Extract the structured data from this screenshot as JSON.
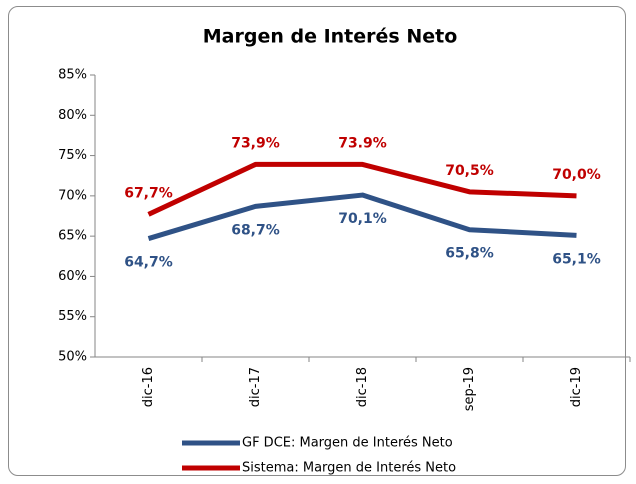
{
  "chart_data": {
    "type": "line",
    "title": "Margen de Interés Neto",
    "categories": [
      "dic-16",
      "dic-17",
      "dic-18",
      "sep-19",
      "dic-19"
    ],
    "series": [
      {
        "name": "GF DCE: Margen de Interés Neto",
        "color": "#2f5286",
        "values": [
          64.7,
          68.7,
          70.1,
          65.8,
          65.1
        ],
        "value_labels": [
          "64,7%",
          "68,7%",
          "70,1%",
          "65,8%",
          "65,1%"
        ]
      },
      {
        "name": "Sistema: Margen de Interés Neto",
        "color": "#c00000",
        "values": [
          67.7,
          73.9,
          73.9,
          70.5,
          70.0
        ],
        "value_labels": [
          "67,7%",
          "73,9%",
          "73.9%",
          "70,5%",
          "70,0%"
        ]
      }
    ],
    "ylim": [
      50,
      85
    ],
    "yticks": [
      {
        "value": 50,
        "label": "50%"
      },
      {
        "value": 55,
        "label": "55%"
      },
      {
        "value": 60,
        "label": "60%"
      },
      {
        "value": 65,
        "label": "65%"
      },
      {
        "value": 70,
        "label": "70%"
      },
      {
        "value": 75,
        "label": "75%"
      },
      {
        "value": 80,
        "label": "80%"
      },
      {
        "value": 85,
        "label": "85%"
      }
    ],
    "grid": false,
    "legend": "bottom"
  }
}
